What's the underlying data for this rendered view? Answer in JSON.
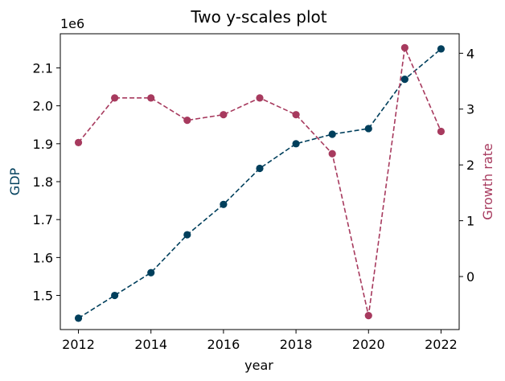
{
  "chart_data": {
    "type": "line",
    "title": "Two y-scales plot",
    "xlabel": "year",
    "x": [
      2012,
      2013,
      2014,
      2015,
      2016,
      2017,
      2018,
      2019,
      2020,
      2021,
      2022
    ],
    "x_ticks": [
      "2012",
      "2014",
      "2016",
      "2018",
      "2020",
      "2022"
    ],
    "xlim": [
      2011.5,
      2022.5
    ],
    "grid": false,
    "legend": "none",
    "left_axis": {
      "label": "GDP",
      "offset_text": "1e6",
      "ylim": [
        1.41,
        2.19
      ],
      "ticks": [
        "1.5",
        "1.6",
        "1.7",
        "1.8",
        "1.9",
        "2.0",
        "2.1"
      ],
      "color": "#003f5c"
    },
    "right_axis": {
      "label": "Growth rate",
      "ylim": [
        -0.95,
        4.35
      ],
      "ticks": [
        "0",
        "1",
        "2",
        "3",
        "4"
      ],
      "color": "#a73a5e"
    },
    "series": [
      {
        "axis": "left",
        "color": "#003f5c",
        "line_style": "dashed",
        "marker": "circle",
        "values": [
          1.44,
          1.5,
          1.56,
          1.66,
          1.74,
          1.835,
          1.9,
          1.925,
          1.94,
          2.07,
          2.15
        ]
      },
      {
        "axis": "right",
        "color": "#a73a5e",
        "line_style": "dashed",
        "marker": "circle",
        "values": [
          2.4,
          3.2,
          3.2,
          2.8,
          2.9,
          3.2,
          2.9,
          2.2,
          -0.7,
          4.1,
          2.6
        ]
      }
    ]
  }
}
